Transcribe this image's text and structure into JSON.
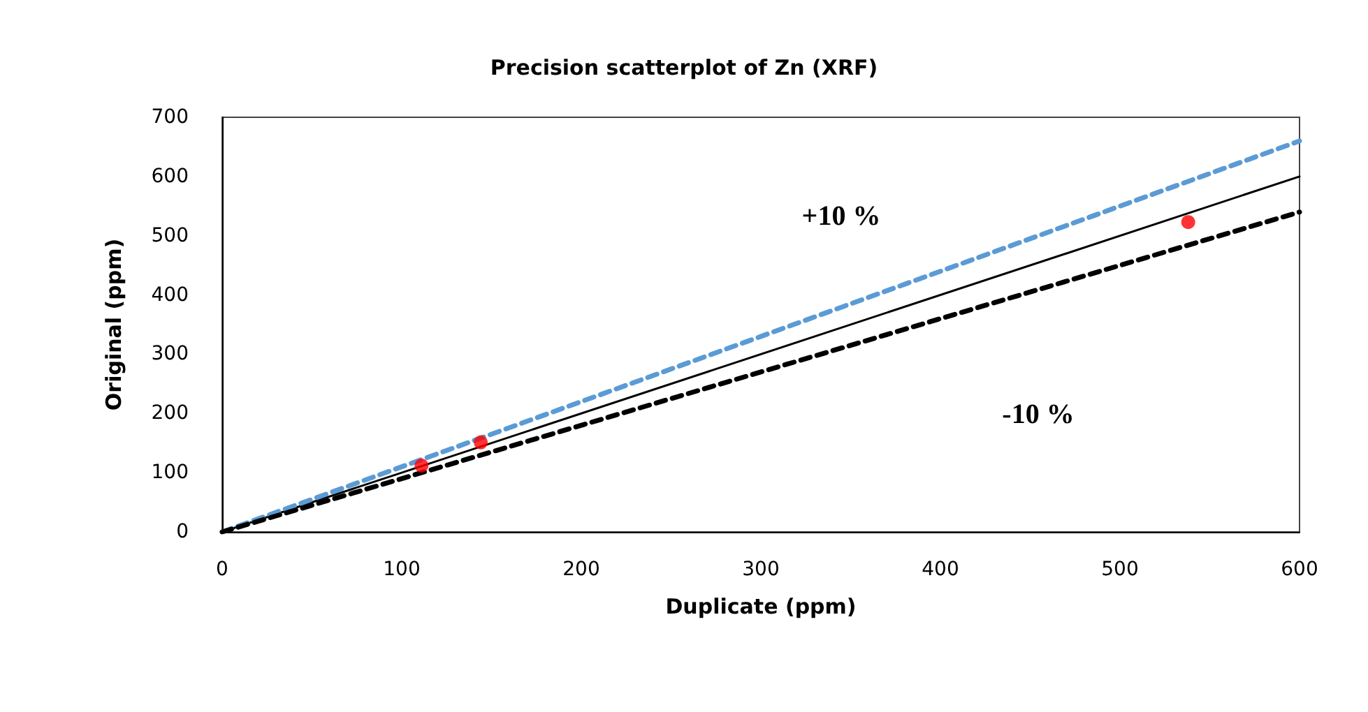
{
  "chart_data": {
    "type": "scatter",
    "title": "Precision scatterplot of Zn (XRF)",
    "xlabel": "Duplicate (ppm)",
    "ylabel": "Original (ppm)",
    "xlim": [
      0,
      600
    ],
    "xticks": [
      0,
      100,
      200,
      300,
      400,
      500,
      600
    ],
    "ylim": [
      0,
      700
    ],
    "yticks": [
      0,
      100,
      200,
      300,
      400,
      500,
      600,
      700
    ],
    "grid": false,
    "series": [
      {
        "type": "line",
        "x": [
          0,
          600
        ],
        "values": [
          0,
          600
        ],
        "color": "#000000",
        "line_style": "solid",
        "marker": "none"
      },
      {
        "type": "line",
        "x": [
          0,
          600
        ],
        "values": [
          0,
          660
        ],
        "color": "#5b9bd5",
        "line_style": "dashed",
        "marker": "none"
      },
      {
        "type": "line",
        "x": [
          0,
          600
        ],
        "values": [
          0,
          540
        ],
        "color": "#000000",
        "line_style": "dashed",
        "marker": "none"
      },
      {
        "x": [
          111,
          144,
          538
        ],
        "values": [
          112,
          151,
          523
        ],
        "color": "#ff0000",
        "marker": "circle"
      }
    ],
    "annotations": [
      "+10 %",
      "-10 %"
    ]
  }
}
